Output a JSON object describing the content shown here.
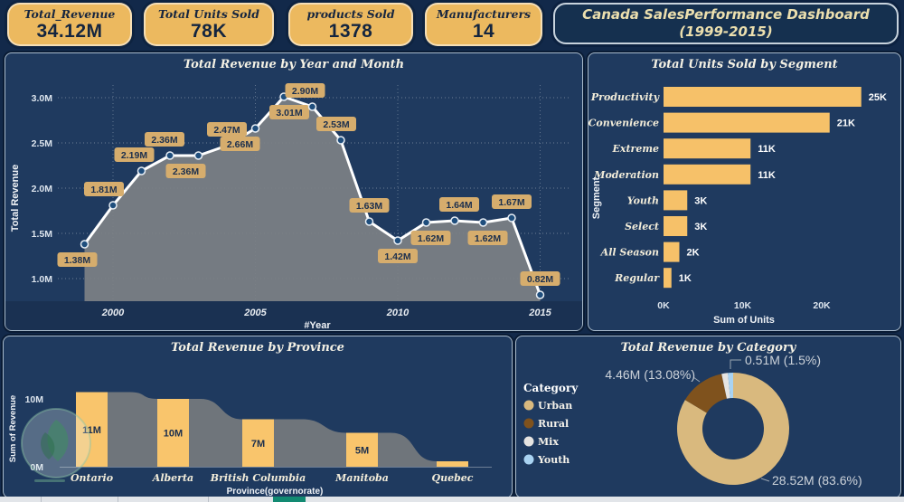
{
  "header": {
    "title_line1": "Canada SalesPerformance Dashboard",
    "title_line2": "(1999-2015)"
  },
  "kpis": [
    {
      "label": "Total_Revenue",
      "value": "34.12M"
    },
    {
      "label": "Total Units Sold",
      "value": "78K"
    },
    {
      "label": "products Sold",
      "value": "1378"
    },
    {
      "label": "Manufacturers",
      "value": "14"
    }
  ],
  "colors": {
    "page_bg": "#12294a",
    "panel_bg": "#1f3a5f",
    "panel_border": "#a7b9ca",
    "card_bg": "#ecb95f",
    "card_text": "#14253f",
    "title_text": "#ecdfae",
    "bar_fill": "#f6c169",
    "line_stroke": "#ffffff",
    "marker_fill": "#1f4e7d",
    "area_grey": "#7d8186",
    "data_label_bg": "#d6ad6d",
    "donut_urban": "#d9b97e",
    "donut_rural": "#7f521d",
    "donut_mix": "#e6e4e1",
    "donut_youth": "#a9d3f2",
    "strip_teal": "#128a72"
  },
  "chart_data": [
    {
      "type": "line",
      "title": "Total Revenue by Year and Month",
      "xlabel": "#Year",
      "ylabel": "Total Revenue",
      "ylim": [
        0.75,
        3.25
      ],
      "grid": true,
      "xticks": [
        2000,
        2005,
        2010,
        2015
      ],
      "yticks": [
        {
          "value": 1.0,
          "label": "1.0M"
        },
        {
          "value": 1.5,
          "label": "1.5M"
        },
        {
          "value": 2.0,
          "label": "2.0M"
        },
        {
          "value": 2.5,
          "label": "2.5M"
        },
        {
          "value": 3.0,
          "label": "3.0M"
        }
      ],
      "points": [
        {
          "year": 1999,
          "value": 1.38,
          "label": "1.38M",
          "label_pos": "below",
          "dx": -8
        },
        {
          "year": 2000,
          "value": 1.81,
          "label": "1.81M",
          "label_pos": "above",
          "dx": -10
        },
        {
          "year": 2001,
          "value": 2.19,
          "label": "2.19M",
          "label_pos": "above",
          "dx": -8
        },
        {
          "year": 2002,
          "value": 2.36,
          "label": "2.36M",
          "label_pos": "above",
          "dx": -6
        },
        {
          "year": 2003,
          "value": 2.36,
          "label": "2.36M",
          "label_pos": "below",
          "dx": -14
        },
        {
          "year": 2004,
          "value": 2.47,
          "label": "2.47M",
          "label_pos": "above",
          "dx": 0
        },
        {
          "year": 2005,
          "value": 2.66,
          "label": "2.66M",
          "label_pos": "below",
          "dx": -17
        },
        {
          "year": 2006,
          "value": 3.01,
          "label": "3.01M",
          "label_pos": "below",
          "dx": 6
        },
        {
          "year": 2007,
          "value": 2.9,
          "label": "2.90M",
          "label_pos": "above",
          "dx": -8
        },
        {
          "year": 2008,
          "value": 2.53,
          "label": "2.53M",
          "label_pos": "above",
          "dx": -5
        },
        {
          "year": 2009,
          "value": 1.63,
          "label": "1.63M",
          "label_pos": "above",
          "dx": 0
        },
        {
          "year": 2010,
          "value": 1.42,
          "label": "1.42M",
          "label_pos": "below",
          "dx": 0
        },
        {
          "year": 2011,
          "value": 1.62,
          "label": "1.62M",
          "label_pos": "below",
          "dx": 5
        },
        {
          "year": 2012,
          "value": 1.64,
          "label": "1.64M",
          "label_pos": "above",
          "dx": 5
        },
        {
          "year": 2013,
          "value": 1.62,
          "label": "1.62M",
          "label_pos": "below",
          "dx": 5
        },
        {
          "year": 2014,
          "value": 1.67,
          "label": "1.67M",
          "label_pos": "above",
          "dx": 0
        },
        {
          "year": 2015,
          "value": 0.82,
          "label": "0.82M",
          "label_pos": "above",
          "dx": 0
        }
      ]
    },
    {
      "type": "bar",
      "title": "Total Units Sold by Segment",
      "xlabel": "Sum of Units",
      "ylabel": "Segment",
      "xlim": [
        0,
        30
      ],
      "categories": [
        "Productivity",
        "Convenience",
        "Extreme",
        "Moderation",
        "Youth",
        "Select",
        "All Season",
        "Regular"
      ],
      "values": [
        25,
        21,
        11,
        11,
        3,
        3,
        2,
        1
      ],
      "value_labels": [
        "25K",
        "21K",
        "11K",
        "11K",
        "3K",
        "3K",
        "2K",
        "1K"
      ],
      "xticks": [
        {
          "value": 0,
          "label": "0K"
        },
        {
          "value": 10,
          "label": "10K"
        },
        {
          "value": 20,
          "label": "20K"
        }
      ]
    },
    {
      "type": "bar+area",
      "title": "Total Revenue by Province",
      "xlabel": "Province(governorate)",
      "ylabel": "Sum of Revenue",
      "ylim": [
        0,
        12
      ],
      "categories": [
        "Ontario",
        "Alberta",
        "British Columbia",
        "Manitoba",
        "Quebec"
      ],
      "values": [
        11,
        10,
        7,
        5,
        0.8
      ],
      "value_labels": [
        "11M",
        "10M",
        "7M",
        "5M",
        ""
      ],
      "yticks": [
        {
          "value": 0,
          "label": "0M"
        },
        {
          "value": 10,
          "label": "10M"
        }
      ]
    },
    {
      "type": "donut",
      "title": "Total Revenue by Category",
      "legend_title": "Category",
      "legend_position": "left",
      "slices": [
        {
          "name": "Urban",
          "pct": 83.6,
          "callout": "28.52M (83.6%)"
        },
        {
          "name": "Rural",
          "pct": 13.08,
          "callout": "4.46M (13.08%)"
        },
        {
          "name": "Mix",
          "pct": 1.82,
          "callout": ""
        },
        {
          "name": "Youth",
          "pct": 1.5,
          "callout": "0.51M (1.5%)"
        }
      ]
    }
  ]
}
